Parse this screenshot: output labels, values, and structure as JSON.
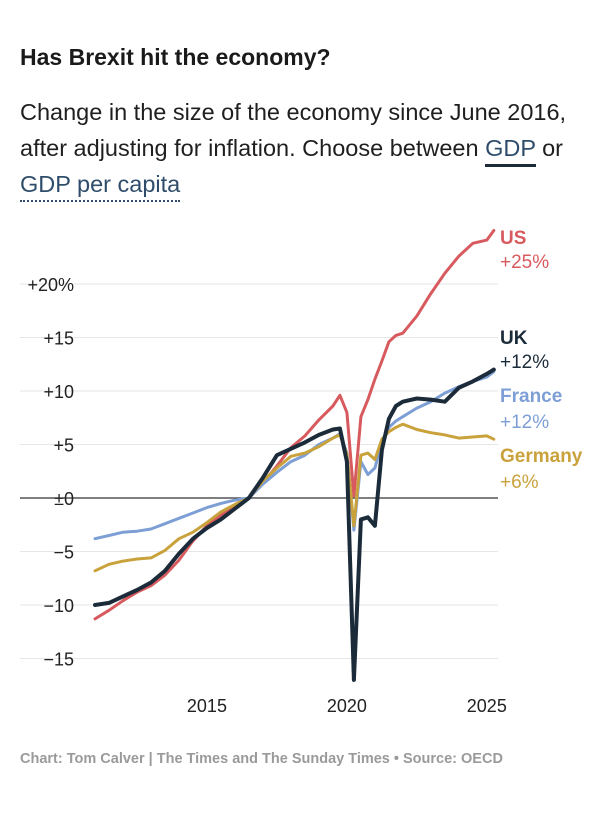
{
  "title": "Has Brexit hit the economy?",
  "subtitle_prefix": "Change in the size of the economy since June 2016, after adjusting for inflation. Choose between",
  "subtitle_or": "or",
  "toggle_gdp": "GDP",
  "toggle_gdp_per_capita": "GDP per capita",
  "footer": "Chart: Tom Calver | The Times and The Sunday Times • Source: OECD",
  "colors": {
    "US": "#d75a5e",
    "UK": "#1c2b3a",
    "France": "#7d9fd6",
    "Germany": "#c9a23c",
    "zero_line": "#333333",
    "grid": "#e6e6e6"
  },
  "chart_data": {
    "type": "line",
    "xlabel": "",
    "ylabel": "",
    "ylim": [
      -17,
      25
    ],
    "xlim": [
      2011.0,
      2025.4
    ],
    "grid": true,
    "y_ticks": [
      20,
      15,
      10,
      5,
      0,
      -5,
      -10,
      -15
    ],
    "y_tick_labels": [
      "+20%",
      "+15",
      "+10",
      "+5",
      "±0",
      "−5",
      "−10",
      "−15"
    ],
    "x_ticks": [
      2015,
      2020,
      2025
    ],
    "x_tick_labels": [
      "2015",
      "2020",
      "2025"
    ],
    "series": [
      {
        "name": "US",
        "end_label": "+25%",
        "x": [
          2011.0,
          2011.5,
          2012.0,
          2012.5,
          2013.0,
          2013.5,
          2014.0,
          2014.5,
          2015.0,
          2015.5,
          2016.0,
          2016.5,
          2017.0,
          2017.5,
          2018.0,
          2018.5,
          2019.0,
          2019.5,
          2019.75,
          2020.0,
          2020.25,
          2020.5,
          2020.75,
          2021.0,
          2021.25,
          2021.5,
          2021.75,
          2022.0,
          2022.5,
          2023.0,
          2023.5,
          2024.0,
          2024.5,
          2025.0,
          2025.25
        ],
        "values": [
          -11.3,
          -10.5,
          -9.6,
          -8.8,
          -8.2,
          -7.2,
          -5.8,
          -4.0,
          -2.6,
          -1.6,
          -0.8,
          0.0,
          1.4,
          3.0,
          4.7,
          5.8,
          7.3,
          8.6,
          9.6,
          8.0,
          0.2,
          7.6,
          9.2,
          11.1,
          12.8,
          14.6,
          15.2,
          15.4,
          17.0,
          19.1,
          21.0,
          22.6,
          23.8,
          24.1,
          25.0
        ]
      },
      {
        "name": "France",
        "end_label": "+12%",
        "x": [
          2011.0,
          2011.5,
          2012.0,
          2012.5,
          2013.0,
          2013.5,
          2014.0,
          2014.5,
          2015.0,
          2015.5,
          2016.0,
          2016.5,
          2017.0,
          2017.5,
          2018.0,
          2018.5,
          2019.0,
          2019.5,
          2019.75,
          2020.0,
          2020.25,
          2020.5,
          2020.75,
          2021.0,
          2021.25,
          2021.5,
          2021.75,
          2022.0,
          2022.5,
          2023.0,
          2023.5,
          2024.0,
          2024.5,
          2025.0,
          2025.25
        ],
        "values": [
          -3.8,
          -3.5,
          -3.2,
          -3.1,
          -2.9,
          -2.4,
          -1.9,
          -1.4,
          -0.9,
          -0.5,
          -0.2,
          0.0,
          1.3,
          2.4,
          3.4,
          4.0,
          5.0,
          5.6,
          6.0,
          4.2,
          -3.0,
          3.4,
          2.2,
          2.8,
          5.2,
          6.6,
          7.2,
          7.6,
          8.4,
          9.0,
          9.8,
          10.4,
          10.9,
          11.3,
          11.8
        ]
      },
      {
        "name": "Germany",
        "end_label": "+6%",
        "x": [
          2011.0,
          2011.5,
          2012.0,
          2012.5,
          2013.0,
          2013.5,
          2014.0,
          2014.5,
          2015.0,
          2015.5,
          2016.0,
          2016.5,
          2017.0,
          2017.5,
          2018.0,
          2018.5,
          2019.0,
          2019.5,
          2019.75,
          2020.0,
          2020.25,
          2020.5,
          2020.75,
          2021.0,
          2021.25,
          2021.5,
          2021.75,
          2022.0,
          2022.5,
          2023.0,
          2023.5,
          2024.0,
          2024.5,
          2025.0,
          2025.25
        ],
        "values": [
          -6.8,
          -6.2,
          -5.9,
          -5.7,
          -5.6,
          -4.9,
          -3.8,
          -3.2,
          -2.3,
          -1.3,
          -0.6,
          0.0,
          1.6,
          2.8,
          3.9,
          4.2,
          4.8,
          5.6,
          5.9,
          4.1,
          -2.6,
          4.0,
          4.2,
          3.6,
          5.5,
          6.2,
          6.6,
          6.9,
          6.4,
          6.1,
          5.9,
          5.6,
          5.7,
          5.8,
          5.5
        ]
      },
      {
        "name": "UK",
        "end_label": "+12%",
        "x": [
          2011.0,
          2011.5,
          2012.0,
          2012.5,
          2013.0,
          2013.5,
          2014.0,
          2014.5,
          2015.0,
          2015.5,
          2016.0,
          2016.5,
          2017.0,
          2017.5,
          2018.0,
          2018.5,
          2019.0,
          2019.5,
          2019.75,
          2020.0,
          2020.25,
          2020.5,
          2020.75,
          2021.0,
          2021.25,
          2021.5,
          2021.75,
          2022.0,
          2022.5,
          2023.0,
          2023.5,
          2024.0,
          2024.5,
          2025.0,
          2025.25
        ],
        "values": [
          -10.0,
          -9.8,
          -9.2,
          -8.6,
          -7.9,
          -6.8,
          -5.2,
          -3.8,
          -2.8,
          -2.0,
          -1.0,
          0.0,
          1.9,
          4.0,
          4.6,
          5.2,
          5.9,
          6.4,
          6.5,
          3.4,
          -17.0,
          -2.0,
          -1.8,
          -2.6,
          4.5,
          7.4,
          8.6,
          9.0,
          9.3,
          9.2,
          9.0,
          10.3,
          10.9,
          11.6,
          12.0
        ]
      }
    ]
  }
}
